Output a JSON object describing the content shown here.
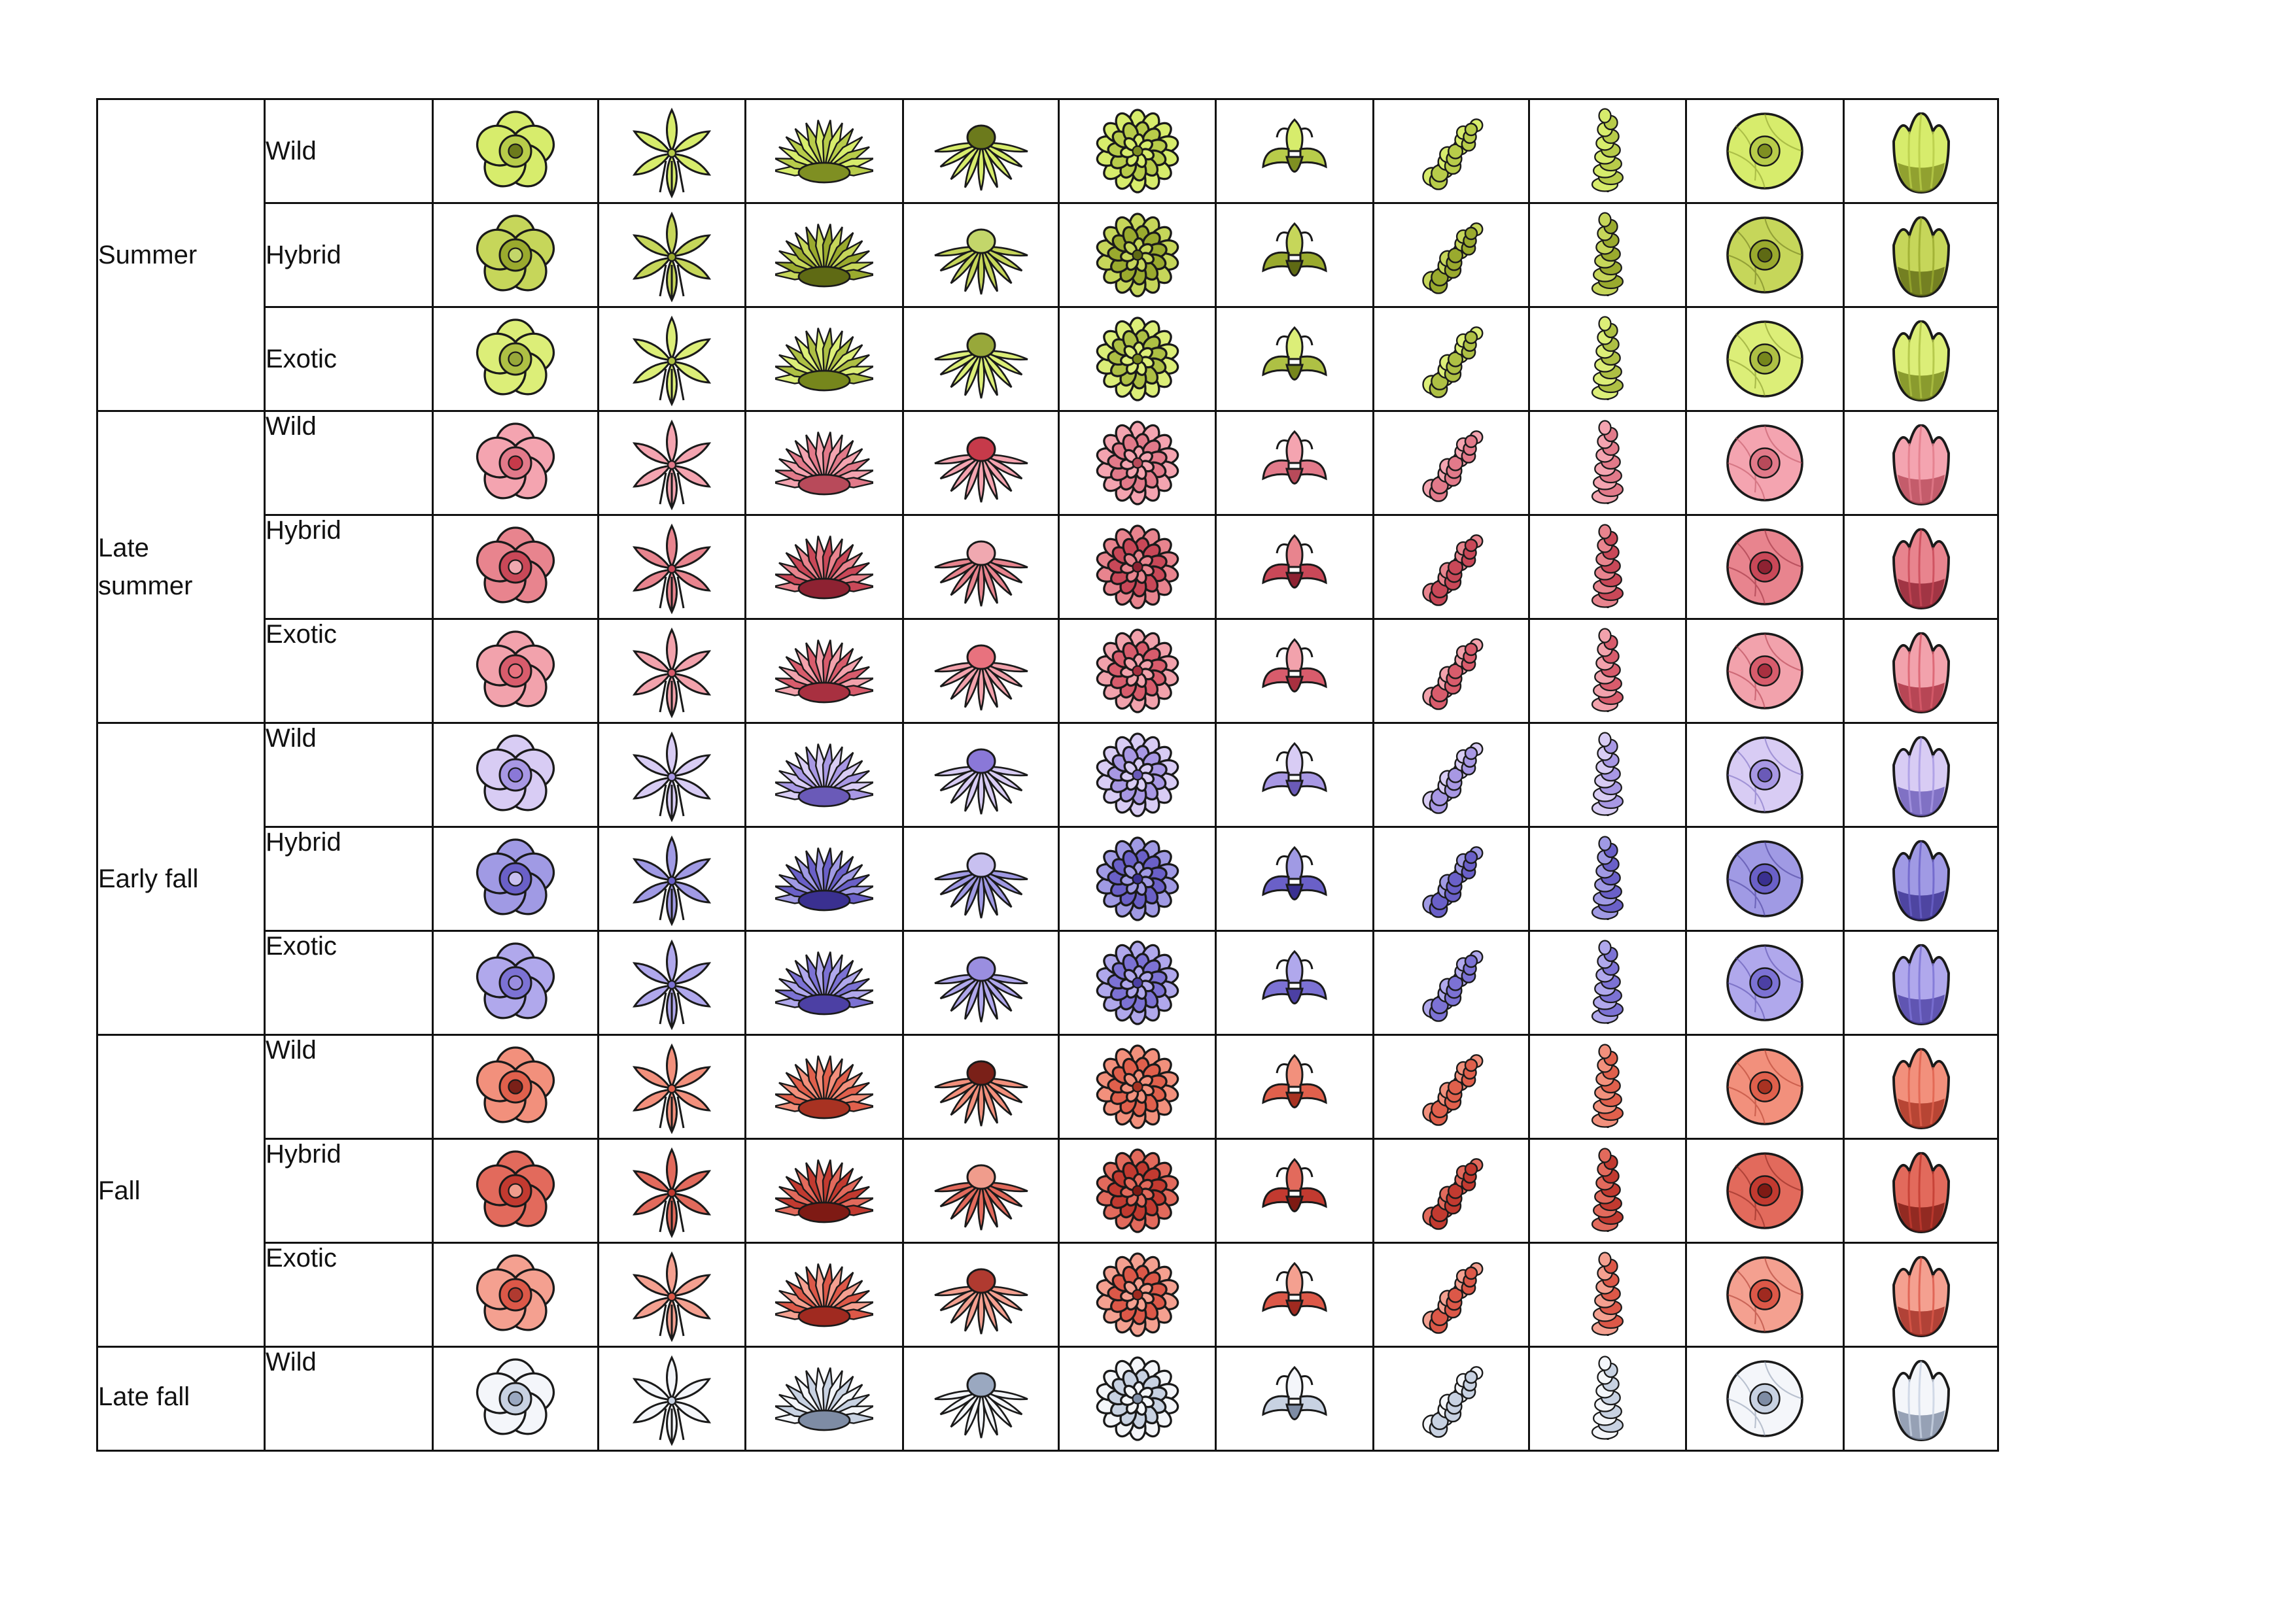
{
  "palettes": {
    "summer": {
      "wild": {
        "light": "#d7ec6c",
        "mid": "#b8cc4a",
        "dark": "#7f8f22",
        "center": "#6c7a1c"
      },
      "hybrid": {
        "light": "#c6d65a",
        "mid": "#9aaa2e",
        "dark": "#5f6a14",
        "center": "#c3d66a"
      },
      "exotic": {
        "light": "#dcee78",
        "mid": "#aec044",
        "dark": "#76861c",
        "center": "#98a83a"
      }
    },
    "late_summer": {
      "wild": {
        "light": "#f4a4b0",
        "mid": "#e27a8a",
        "dark": "#b84a5a",
        "center": "#c63a4a"
      },
      "hybrid": {
        "light": "#e8848e",
        "mid": "#c94858",
        "dark": "#8e2232",
        "center": "#f0a8b0"
      },
      "exotic": {
        "light": "#f2a2ac",
        "mid": "#d85c6c",
        "dark": "#a83040",
        "center": "#e8727e"
      }
    },
    "early_fall": {
      "wild": {
        "light": "#d8ccf4",
        "mid": "#a898e4",
        "dark": "#6a5ab8",
        "center": "#8a78d8"
      },
      "hybrid": {
        "light": "#a09ae4",
        "mid": "#6a60c8",
        "dark": "#3a3090",
        "center": "#c8c0f0"
      },
      "exotic": {
        "light": "#b0a8ec",
        "mid": "#7c72d4",
        "dark": "#4c40a4",
        "center": "#9a8ee0"
      }
    },
    "fall": {
      "wild": {
        "light": "#f2907c",
        "mid": "#e0604c",
        "dark": "#a83222",
        "center": "#7a2018"
      },
      "hybrid": {
        "light": "#e26a5c",
        "mid": "#c23a30",
        "dark": "#7e1a14",
        "center": "#f09c8c"
      },
      "exotic": {
        "light": "#f4a090",
        "mid": "#dc5848",
        "dark": "#a02a20",
        "center": "#b03a30"
      }
    },
    "late_fall": {
      "wild": {
        "light": "#f4f6fa",
        "mid": "#c8d2e2",
        "dark": "#7e8ca4",
        "center": "#9aa8c0"
      }
    }
  },
  "flower_types": [
    "primrose",
    "lily",
    "spiky",
    "coneflower",
    "dahlia",
    "iris",
    "lilac",
    "hyacinth",
    "poppy",
    "tulip"
  ],
  "seasons": [
    {
      "key": "summer",
      "label": "Summer",
      "rows": [
        {
          "key": "wild",
          "label": "Wild"
        },
        {
          "key": "hybrid",
          "label": "Hybrid"
        },
        {
          "key": "exotic",
          "label": "Exotic"
        }
      ]
    },
    {
      "key": "late_summer",
      "label": "Late summer",
      "rows": [
        {
          "key": "wild",
          "label": "Wild"
        },
        {
          "key": "hybrid",
          "label": "Hybrid"
        },
        {
          "key": "exotic",
          "label": "Exotic"
        }
      ]
    },
    {
      "key": "early_fall",
      "label": "Early fall",
      "rows": [
        {
          "key": "wild",
          "label": "Wild"
        },
        {
          "key": "hybrid",
          "label": "Hybrid"
        },
        {
          "key": "exotic",
          "label": "Exotic"
        }
      ]
    },
    {
      "key": "fall",
      "label": "Fall",
      "rows": [
        {
          "key": "wild",
          "label": "Wild"
        },
        {
          "key": "hybrid",
          "label": "Hybrid"
        },
        {
          "key": "exotic",
          "label": "Exotic"
        }
      ]
    },
    {
      "key": "late_fall",
      "label": "Late fall",
      "rows": [
        {
          "key": "wild",
          "label": "Wild"
        }
      ]
    }
  ]
}
